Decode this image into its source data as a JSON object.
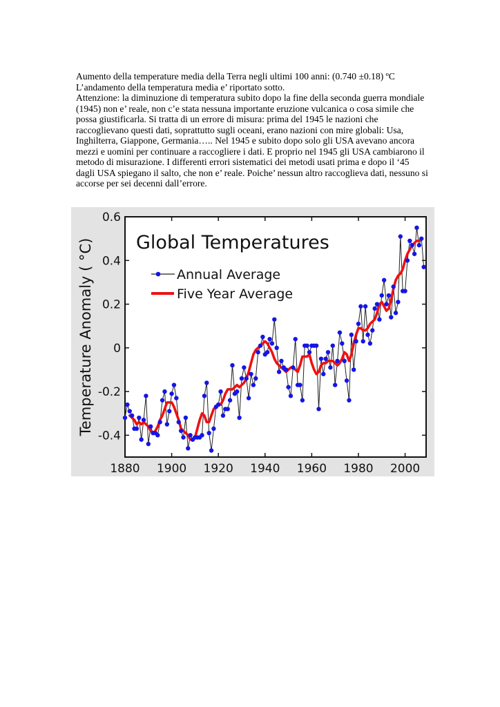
{
  "document": {
    "lines": [
      "Aumento della temperature media della Terra negli ultimi 100 anni: (0.740 ±0.18) ºC",
      "L’andamento della temperatura media e’ riportato sotto.",
      "Attenzione: la diminuzione di temperatura subito dopo la fine della seconda guerra mondiale (1945) non e’ reale, non c’e stata nessuna importante eruzione vulcanica o cosa simile che possa giustificarla.  Si tratta di un errore di misura: prima del 1945 le nazioni che raccoglievano questi dati, soprattutto sugli oceani, erano nazioni con mire globali: Usa, Inghilterra, Giappone, Germania….. Nel 1945 e subito dopo solo gli USA avevano ancora mezzi e uomini per continuare a raccogliere i dati. E proprio nel 1945 gli USA cambiarono il metodo di misurazione. I differenti errori sistematici dei metodi usati prima e dopo il ‘45 dagli USA spiegano il salto, che non e’ reale. Poiche’ nessun altro raccoglieva dati, nessuno si accorse per sei decenni dall’errore."
    ]
  },
  "chart_data": {
    "type": "line",
    "title": "Global Temperatures",
    "ylabel": "Temperature Anomaly ( °C)",
    "xlabel": "",
    "xlim": [
      1880,
      2009
    ],
    "ylim": [
      -0.5,
      0.6
    ],
    "x_ticks": [
      "1880",
      "1900",
      "1920",
      "1940",
      "1960",
      "1980",
      "2000"
    ],
    "y_ticks": [
      "0.6",
      "0.4",
      "0.2",
      "0",
      "-0.2",
      "-0.4"
    ],
    "legend_position": "top-left",
    "grid": false,
    "colors": {
      "annual_line": "#222222",
      "annual_marker": "#1515e6",
      "five_year": "#ee1111",
      "background": "#e3e3e3"
    },
    "series": [
      {
        "name": "Annual Average",
        "x": [
          1880,
          1881,
          1882,
          1883,
          1884,
          1885,
          1886,
          1887,
          1888,
          1889,
          1890,
          1891,
          1892,
          1893,
          1894,
          1895,
          1896,
          1897,
          1898,
          1899,
          1900,
          1901,
          1902,
          1903,
          1904,
          1905,
          1906,
          1907,
          1908,
          1909,
          1910,
          1911,
          1912,
          1913,
          1914,
          1915,
          1916,
          1917,
          1918,
          1919,
          1920,
          1921,
          1922,
          1923,
          1924,
          1925,
          1926,
          1927,
          1928,
          1929,
          1930,
          1931,
          1932,
          1933,
          1934,
          1935,
          1936,
          1937,
          1938,
          1939,
          1940,
          1941,
          1942,
          1943,
          1944,
          1945,
          1946,
          1947,
          1948,
          1949,
          1950,
          1951,
          1952,
          1953,
          1954,
          1955,
          1956,
          1957,
          1958,
          1959,
          1960,
          1961,
          1962,
          1963,
          1964,
          1965,
          1966,
          1967,
          1968,
          1969,
          1970,
          1971,
          1972,
          1973,
          1974,
          1975,
          1976,
          1977,
          1978,
          1979,
          1980,
          1981,
          1982,
          1983,
          1984,
          1985,
          1986,
          1987,
          1988,
          1989,
          1990,
          1991,
          1992,
          1993,
          1994,
          1995,
          1996,
          1997,
          1998,
          1999,
          2000,
          2001,
          2002,
          2003,
          2004,
          2005,
          2006,
          2007,
          2008
        ],
        "values": [
          -0.32,
          -0.26,
          -0.29,
          -0.31,
          -0.37,
          -0.37,
          -0.32,
          -0.42,
          -0.33,
          -0.22,
          -0.44,
          -0.36,
          -0.39,
          -0.39,
          -0.4,
          -0.34,
          -0.24,
          -0.2,
          -0.35,
          -0.29,
          -0.21,
          -0.17,
          -0.23,
          -0.34,
          -0.38,
          -0.41,
          -0.32,
          -0.46,
          -0.4,
          -0.42,
          -0.41,
          -0.41,
          -0.41,
          -0.4,
          -0.22,
          -0.16,
          -0.39,
          -0.47,
          -0.37,
          -0.27,
          -0.26,
          -0.2,
          -0.31,
          -0.28,
          -0.28,
          -0.24,
          -0.08,
          -0.21,
          -0.2,
          -0.32,
          -0.14,
          -0.09,
          -0.14,
          -0.23,
          -0.12,
          -0.17,
          -0.14,
          -0.02,
          0.01,
          0.05,
          -0.03,
          -0.02,
          0.04,
          0.02,
          0.13,
          0.0,
          -0.11,
          -0.06,
          -0.09,
          -0.1,
          -0.18,
          -0.22,
          -0.09,
          0.04,
          -0.17,
          -0.17,
          -0.24,
          0.01,
          0.01,
          -0.02,
          0.01,
          0.01,
          0.01,
          -0.28,
          -0.05,
          -0.12,
          -0.05,
          -0.02,
          -0.09,
          0.01,
          -0.17,
          -0.06,
          0.07,
          0.02,
          -0.06,
          -0.15,
          -0.24,
          0.06,
          -0.1,
          0.03,
          0.11,
          0.19,
          0.03,
          0.19,
          0.06,
          0.02,
          0.08,
          0.18,
          0.2,
          0.13,
          0.24,
          0.31,
          0.2,
          0.24,
          0.14,
          0.28,
          0.16,
          0.21,
          0.51,
          0.26,
          0.26,
          0.4,
          0.49,
          0.47,
          0.43,
          0.55,
          0.47,
          0.5,
          0.37
        ]
      },
      {
        "name": "Five Year Average",
        "x": [
          1882,
          1883,
          1884,
          1885,
          1886,
          1887,
          1888,
          1889,
          1890,
          1891,
          1892,
          1893,
          1894,
          1895,
          1896,
          1897,
          1898,
          1899,
          1900,
          1901,
          1902,
          1903,
          1904,
          1905,
          1906,
          1907,
          1908,
          1909,
          1910,
          1911,
          1912,
          1913,
          1914,
          1915,
          1916,
          1917,
          1918,
          1919,
          1920,
          1921,
          1922,
          1923,
          1924,
          1925,
          1926,
          1927,
          1928,
          1929,
          1930,
          1931,
          1932,
          1933,
          1934,
          1935,
          1936,
          1937,
          1938,
          1939,
          1940,
          1941,
          1942,
          1943,
          1944,
          1945,
          1946,
          1947,
          1948,
          1949,
          1950,
          1951,
          1952,
          1953,
          1954,
          1955,
          1956,
          1957,
          1958,
          1959,
          1960,
          1961,
          1962,
          1963,
          1964,
          1965,
          1966,
          1967,
          1968,
          1969,
          1970,
          1971,
          1972,
          1973,
          1974,
          1975,
          1976,
          1977,
          1978,
          1979,
          1980,
          1981,
          1982,
          1983,
          1984,
          1985,
          1986,
          1987,
          1988,
          1989,
          1990,
          1991,
          1992,
          1993,
          1994,
          1995,
          1996,
          1997,
          1998,
          1999,
          2000,
          2001,
          2002,
          2003,
          2004,
          2005,
          2006
        ],
        "values": [
          -0.31,
          -0.32,
          -0.33,
          -0.35,
          -0.34,
          -0.35,
          -0.34,
          -0.35,
          -0.36,
          -0.38,
          -0.39,
          -0.38,
          -0.36,
          -0.33,
          -0.31,
          -0.28,
          -0.25,
          -0.25,
          -0.25,
          -0.27,
          -0.3,
          -0.33,
          -0.37,
          -0.38,
          -0.39,
          -0.4,
          -0.42,
          -0.42,
          -0.41,
          -0.37,
          -0.33,
          -0.3,
          -0.31,
          -0.34,
          -0.34,
          -0.31,
          -0.28,
          -0.27,
          -0.26,
          -0.26,
          -0.24,
          -0.21,
          -0.19,
          -0.19,
          -0.19,
          -0.18,
          -0.17,
          -0.18,
          -0.17,
          -0.16,
          -0.14,
          -0.11,
          -0.07,
          -0.03,
          -0.01,
          0.0,
          0.01,
          0.02,
          0.03,
          0.02,
          0.0,
          -0.02,
          -0.05,
          -0.07,
          -0.08,
          -0.09,
          -0.1,
          -0.11,
          -0.1,
          -0.09,
          -0.09,
          -0.1,
          -0.11,
          -0.08,
          -0.04,
          -0.04,
          -0.04,
          -0.03,
          -0.07,
          -0.1,
          -0.12,
          -0.11,
          -0.08,
          -0.07,
          -0.07,
          -0.06,
          -0.06,
          -0.06,
          -0.07,
          -0.08,
          -0.07,
          -0.05,
          -0.02,
          -0.03,
          -0.06,
          -0.03,
          0.02,
          0.06,
          0.09,
          0.09,
          0.08,
          0.08,
          0.09,
          0.11,
          0.12,
          0.13,
          0.16,
          0.2,
          0.21,
          0.19,
          0.17,
          0.18,
          0.22,
          0.27,
          0.31,
          0.33,
          0.34,
          0.36,
          0.4,
          0.43,
          0.45,
          0.47,
          0.48,
          0.49,
          0.49
        ]
      }
    ]
  }
}
